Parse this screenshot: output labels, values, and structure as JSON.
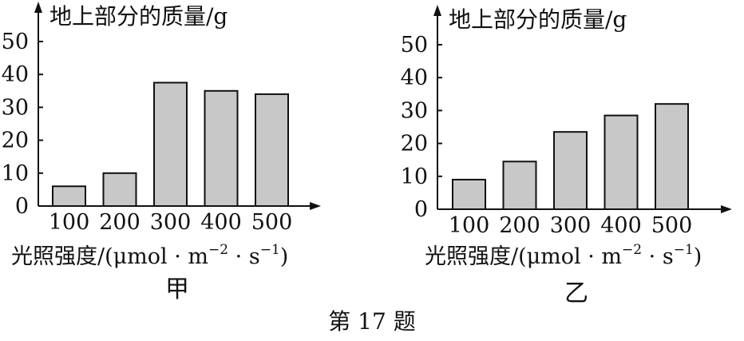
{
  "caption": "第 17 题",
  "colors": {
    "bar_fill": "#c8c8c8",
    "ink": "#111111"
  },
  "chart_data": [
    {
      "type": "bar",
      "subtitle": "甲",
      "ylabel": "地上部分的质量/g",
      "xlabel": "光照强度/(μmol · m⁻² · s⁻¹)",
      "xlabel_parts": {
        "prefix": "光照强度/(μmol · m",
        "exp1": "−2",
        "middle": " · s",
        "exp2": "−1",
        "suffix": ")"
      },
      "categories": [
        "100",
        "200",
        "300",
        "400",
        "500"
      ],
      "values": [
        6,
        10,
        37.5,
        35,
        34
      ],
      "ylim": [
        0,
        50
      ],
      "yticks": [
        "0",
        "10",
        "20",
        "30",
        "40",
        "50"
      ],
      "grid": false,
      "legend": "none"
    },
    {
      "type": "bar",
      "subtitle": "乙",
      "ylabel": "地上部分的质量/g",
      "xlabel": "光照强度/(μmol · m⁻² · s⁻¹)",
      "xlabel_parts": {
        "prefix": "光照强度/(μmol · m",
        "exp1": "−2",
        "middle": " · s",
        "exp2": "−1",
        "suffix": ")"
      },
      "categories": [
        "100",
        "200",
        "300",
        "400",
        "500"
      ],
      "values": [
        9,
        14.5,
        23.5,
        28.5,
        32
      ],
      "ylim": [
        0,
        50
      ],
      "yticks": [
        "0",
        "10",
        "20",
        "30",
        "40",
        "50"
      ],
      "grid": false,
      "legend": "none"
    }
  ]
}
